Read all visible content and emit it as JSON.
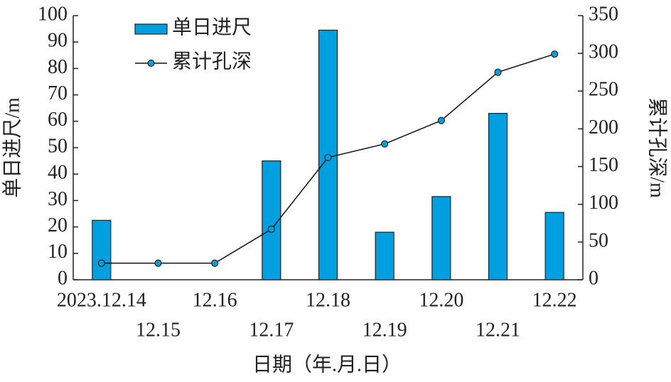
{
  "chart_data": {
    "type": "bar-line",
    "x_label": "日期（年.月.日）",
    "categories": [
      "2023.12.14",
      "12.15",
      "12.16",
      "12.17",
      "12.18",
      "12.19",
      "12.20",
      "12.21",
      "12.22"
    ],
    "series": [
      {
        "name": "单日进尺",
        "type": "bar",
        "color": "#00a0e0",
        "values": [
          22.5,
          null,
          null,
          45,
          94.5,
          18,
          31.5,
          63,
          25.5
        ]
      },
      {
        "name": "累计孔深",
        "type": "line",
        "axis": "y2",
        "color": "#111111",
        "marker_color": "#00a0e0",
        "values": [
          22,
          22,
          22,
          67,
          162,
          180,
          211,
          275,
          299
        ]
      }
    ],
    "y_label": "单日进尺/m",
    "ylim": [
      0,
      100
    ],
    "yticks": [
      0,
      10,
      20,
      30,
      40,
      50,
      60,
      70,
      80,
      90,
      100
    ],
    "y2_label": "累计孔深/m",
    "y2lim": [
      0,
      350
    ],
    "y2ticks": [
      0,
      50,
      100,
      150,
      200,
      250,
      300,
      350
    ],
    "legend": "top-left"
  }
}
